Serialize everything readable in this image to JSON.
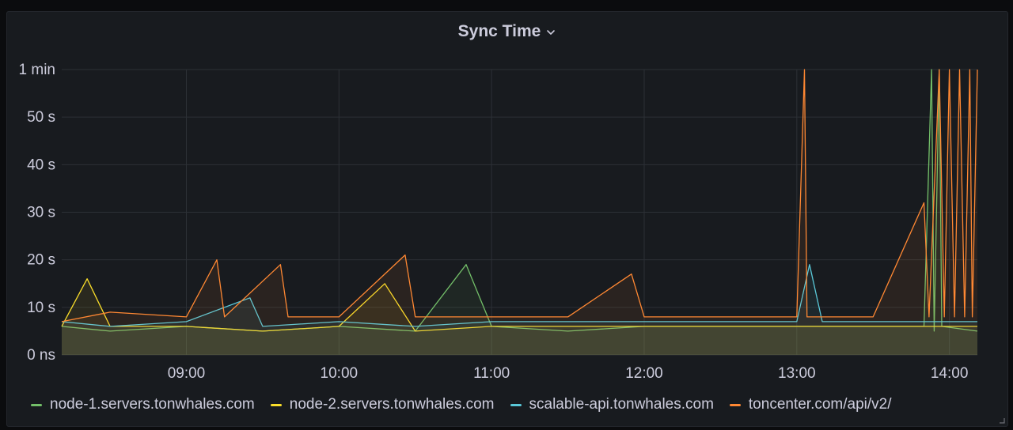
{
  "panel": {
    "title": "Sync Time"
  },
  "colors": {
    "background": "#181b1f",
    "grid": "#2c3036",
    "text": "#ccccdc",
    "node1": "#73bf69",
    "node2": "#fade2a",
    "scalable": "#5ac8d8",
    "toncenter": "#ff8833"
  },
  "chart_data": {
    "type": "line",
    "title": "Sync Time",
    "xlabel": "",
    "ylabel": "",
    "y_unit": "seconds",
    "ylim": [
      0,
      60
    ],
    "y_ticks": [
      0,
      10,
      20,
      30,
      40,
      50,
      60
    ],
    "y_tick_labels": [
      "0 ns",
      "10 s",
      "20 s",
      "30 s",
      "40 s",
      "50 s",
      "1 min"
    ],
    "x_range": [
      "08:11",
      "14:11"
    ],
    "x_ticks": [
      "09:00",
      "10:00",
      "11:00",
      "12:00",
      "13:00",
      "14:00"
    ],
    "grid": true,
    "legend_position": "bottom",
    "series": [
      {
        "name": "node-1.servers.tonwhales.com",
        "color": "#73bf69",
        "points": [
          [
            "08:11",
            6
          ],
          [
            "08:30",
            5
          ],
          [
            "09:00",
            6
          ],
          [
            "09:30",
            5
          ],
          [
            "10:00",
            6
          ],
          [
            "10:30",
            5
          ],
          [
            "10:50",
            19
          ],
          [
            "11:00",
            6
          ],
          [
            "11:30",
            5
          ],
          [
            "12:00",
            6
          ],
          [
            "12:30",
            6
          ],
          [
            "13:00",
            6
          ],
          [
            "13:30",
            6
          ],
          [
            "13:50",
            6
          ],
          [
            "13:53",
            60
          ],
          [
            "13:54",
            5
          ],
          [
            "13:56",
            60
          ],
          [
            "13:57",
            6
          ],
          [
            "14:11",
            5
          ]
        ]
      },
      {
        "name": "node-2.servers.tonwhales.com",
        "color": "#fade2a",
        "points": [
          [
            "08:11",
            6
          ],
          [
            "08:21",
            16
          ],
          [
            "08:30",
            6
          ],
          [
            "09:00",
            6
          ],
          [
            "09:30",
            5
          ],
          [
            "10:00",
            6
          ],
          [
            "10:18",
            15
          ],
          [
            "10:30",
            5
          ],
          [
            "11:00",
            6
          ],
          [
            "11:30",
            6
          ],
          [
            "12:00",
            6
          ],
          [
            "12:30",
            6
          ],
          [
            "13:00",
            6
          ],
          [
            "13:30",
            6
          ],
          [
            "14:00",
            6
          ],
          [
            "14:11",
            6
          ]
        ]
      },
      {
        "name": "scalable-api.tonwhales.com",
        "color": "#5ac8d8",
        "points": [
          [
            "08:11",
            7
          ],
          [
            "08:30",
            6
          ],
          [
            "09:00",
            7
          ],
          [
            "09:25",
            12
          ],
          [
            "09:30",
            6
          ],
          [
            "10:00",
            7
          ],
          [
            "10:30",
            6
          ],
          [
            "11:00",
            7
          ],
          [
            "11:30",
            7
          ],
          [
            "12:00",
            7
          ],
          [
            "12:30",
            7
          ],
          [
            "13:00",
            7
          ],
          [
            "13:05",
            19
          ],
          [
            "13:10",
            7
          ],
          [
            "13:30",
            7
          ],
          [
            "14:00",
            7
          ],
          [
            "14:11",
            7
          ]
        ]
      },
      {
        "name": "toncenter.com/api/v2/",
        "color": "#ff8833",
        "points": [
          [
            "08:11",
            7
          ],
          [
            "08:30",
            9
          ],
          [
            "09:00",
            8
          ],
          [
            "09:12",
            20
          ],
          [
            "09:15",
            8
          ],
          [
            "09:37",
            19
          ],
          [
            "09:40",
            8
          ],
          [
            "10:00",
            8
          ],
          [
            "10:26",
            21
          ],
          [
            "10:30",
            8
          ],
          [
            "11:00",
            8
          ],
          [
            "11:30",
            8
          ],
          [
            "11:55",
            17
          ],
          [
            "12:00",
            8
          ],
          [
            "12:30",
            8
          ],
          [
            "13:00",
            8
          ],
          [
            "13:03",
            60
          ],
          [
            "13:04",
            8
          ],
          [
            "13:30",
            8
          ],
          [
            "13:50",
            32
          ],
          [
            "13:52",
            8
          ],
          [
            "13:56",
            60
          ],
          [
            "13:58",
            8
          ],
          [
            "14:00",
            60
          ],
          [
            "14:02",
            8
          ],
          [
            "14:04",
            60
          ],
          [
            "14:06",
            8
          ],
          [
            "14:08",
            60
          ],
          [
            "14:09",
            8
          ],
          [
            "14:11",
            60
          ]
        ]
      }
    ]
  }
}
